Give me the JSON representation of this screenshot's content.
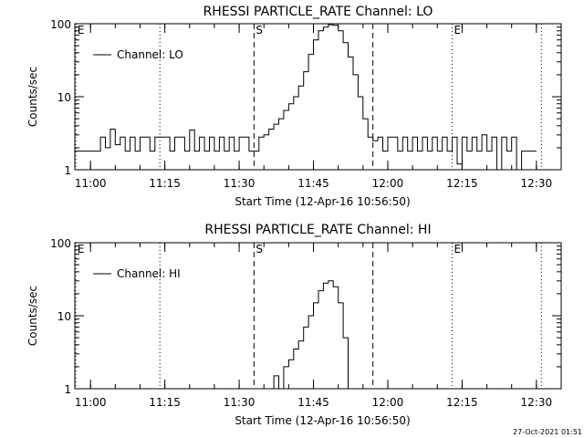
{
  "chart_data": [
    {
      "type": "line",
      "title": "RHESSI PARTICLE_RATE Channel: LO",
      "xlabel": "Start Time (12-Apr-16 10:56:50)",
      "ylabel": "Counts/sec",
      "yscale": "log",
      "ylim": [
        1,
        100
      ],
      "xlim": [
        "10:56:50",
        "12:35:00"
      ],
      "x_ticks": [
        "11:00",
        "11:15",
        "11:30",
        "11:45",
        "12:00",
        "12:15",
        "12:30"
      ],
      "y_ticks": [
        "1",
        "10",
        "100"
      ],
      "legend": {
        "position": "top-left",
        "entries": [
          "Channel: LO"
        ]
      },
      "markers": [
        {
          "label": "E",
          "time": "10:57",
          "style": "dotted"
        },
        {
          "label": "",
          "time": "11:14",
          "style": "dotted"
        },
        {
          "label": "S",
          "time": "11:33",
          "style": "dashed"
        },
        {
          "label": "",
          "time": "11:57",
          "style": "dashed"
        },
        {
          "label": "E",
          "time": "12:13",
          "style": "dotted"
        },
        {
          "label": "",
          "time": "12:31",
          "style": "dotted"
        }
      ],
      "series": [
        {
          "name": "Channel: LO",
          "points": [
            [
              "10:56:50",
              1.8
            ],
            [
              "11:01",
              1.8
            ],
            [
              "11:02",
              2.8
            ],
            [
              "11:03",
              2.0
            ],
            [
              "11:04",
              3.6
            ],
            [
              "11:05",
              2.2
            ],
            [
              "11:06",
              2.8
            ],
            [
              "11:07",
              1.8
            ],
            [
              "11:08",
              2.8
            ],
            [
              "11:09",
              1.8
            ],
            [
              "11:10",
              2.8
            ],
            [
              "11:11",
              2.8
            ],
            [
              "11:12",
              1.8
            ],
            [
              "11:13",
              2.8
            ],
            [
              "11:15",
              2.8
            ],
            [
              "11:16",
              1.8
            ],
            [
              "11:17",
              2.8
            ],
            [
              "11:18",
              2.8
            ],
            [
              "11:19",
              1.8
            ],
            [
              "11:20",
              3.5
            ],
            [
              "11:21",
              1.8
            ],
            [
              "11:22",
              2.8
            ],
            [
              "11:23",
              1.8
            ],
            [
              "11:24",
              2.8
            ],
            [
              "11:25",
              1.8
            ],
            [
              "11:26",
              2.8
            ],
            [
              "11:27",
              1.8
            ],
            [
              "11:28",
              2.8
            ],
            [
              "11:29",
              1.8
            ],
            [
              "11:30",
              2.8
            ],
            [
              "11:31",
              2.8
            ],
            [
              "11:32",
              1.8
            ],
            [
              "11:33",
              1.8
            ],
            [
              "11:34",
              2.8
            ],
            [
              "11:35",
              3.0
            ],
            [
              "11:36",
              3.6
            ],
            [
              "11:37",
              4.2
            ],
            [
              "11:38",
              5.0
            ],
            [
              "11:39",
              6.5
            ],
            [
              "11:40",
              8.0
            ],
            [
              "11:41",
              10.0
            ],
            [
              "11:42",
              14.0
            ],
            [
              "11:43",
              22.0
            ],
            [
              "11:44",
              38.0
            ],
            [
              "11:45",
              60.0
            ],
            [
              "11:46",
              80.0
            ],
            [
              "11:47",
              90.0
            ],
            [
              "11:48",
              97.0
            ],
            [
              "11:49",
              95.0
            ],
            [
              "11:50",
              80.0
            ],
            [
              "11:51",
              55.0
            ],
            [
              "11:52",
              35.0
            ],
            [
              "11:53",
              20.0
            ],
            [
              "11:54",
              10.0
            ],
            [
              "11:55",
              5.0
            ],
            [
              "11:56",
              2.8
            ],
            [
              "11:57",
              2.5
            ],
            [
              "11:58",
              2.8
            ],
            [
              "11:59",
              1.8
            ],
            [
              "12:00",
              2.8
            ],
            [
              "12:01",
              2.8
            ],
            [
              "12:02",
              1.8
            ],
            [
              "12:03",
              2.8
            ],
            [
              "12:04",
              1.8
            ],
            [
              "12:05",
              2.8
            ],
            [
              "12:06",
              1.8
            ],
            [
              "12:07",
              2.8
            ],
            [
              "12:08",
              1.8
            ],
            [
              "12:09",
              2.8
            ],
            [
              "12:10",
              1.8
            ],
            [
              "12:11",
              2.8
            ],
            [
              "12:12",
              1.8
            ],
            [
              "12:13",
              2.8
            ],
            [
              "12:14",
              1.2
            ],
            [
              "12:15",
              2.8
            ],
            [
              "12:16",
              1.8
            ],
            [
              "12:17",
              2.8
            ],
            [
              "12:18",
              1.8
            ],
            [
              "12:19",
              3.0
            ],
            [
              "12:20",
              1.8
            ],
            [
              "12:21",
              2.8
            ],
            [
              "12:22",
              1.0
            ],
            [
              "12:23",
              2.8
            ],
            [
              "12:24",
              1.8
            ],
            [
              "12:25",
              2.8
            ],
            [
              "12:26",
              1.0
            ],
            [
              "12:27",
              1.8
            ],
            [
              "12:30",
              1.8
            ]
          ]
        }
      ]
    },
    {
      "type": "line",
      "title": "RHESSI PARTICLE_RATE Channel: HI",
      "xlabel": "Start Time (12-Apr-16 10:56:50)",
      "ylabel": "Counts/sec",
      "yscale": "log",
      "ylim": [
        1,
        100
      ],
      "xlim": [
        "10:56:50",
        "12:35:00"
      ],
      "x_ticks": [
        "11:00",
        "11:15",
        "11:30",
        "11:45",
        "12:00",
        "12:15",
        "12:30"
      ],
      "y_ticks": [
        "1",
        "10",
        "100"
      ],
      "legend": {
        "position": "top-left",
        "entries": [
          "Channel: HI"
        ]
      },
      "markers": [
        {
          "label": "E",
          "time": "10:57",
          "style": "dotted"
        },
        {
          "label": "",
          "time": "11:14",
          "style": "dotted"
        },
        {
          "label": "S",
          "time": "11:33",
          "style": "dashed"
        },
        {
          "label": "",
          "time": "11:57",
          "style": "dashed"
        },
        {
          "label": "E",
          "time": "12:13",
          "style": "dotted"
        },
        {
          "label": "",
          "time": "12:31",
          "style": "dotted"
        }
      ],
      "series": [
        {
          "name": "Channel: HI",
          "points": [
            [
              "11:36",
              1.0
            ],
            [
              "11:37",
              1.5
            ],
            [
              "11:38",
              1.0
            ],
            [
              "11:39",
              2.0
            ],
            [
              "11:40",
              2.5
            ],
            [
              "11:41",
              3.5
            ],
            [
              "11:42",
              4.5
            ],
            [
              "11:43",
              7.0
            ],
            [
              "11:44",
              10.0
            ],
            [
              "11:45",
              15.0
            ],
            [
              "11:46",
              22.0
            ],
            [
              "11:47",
              28.0
            ],
            [
              "11:48",
              30.0
            ],
            [
              "11:49",
              25.0
            ],
            [
              "11:50",
              15.0
            ],
            [
              "11:51",
              5.0
            ],
            [
              "11:52",
              1.0
            ]
          ]
        }
      ]
    }
  ],
  "footer": {
    "timestamp": "27-Oct-2021 01:51"
  }
}
